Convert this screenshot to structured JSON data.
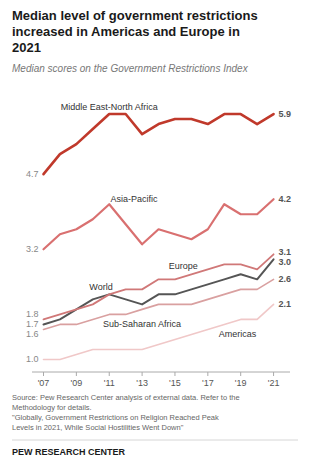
{
  "chart_data": {
    "type": "line",
    "title": "Median level of government restrictions\nincreased in Americas and Europe in\n2021",
    "subtitle": "Median scores on the Government Restrictions Index",
    "source": "Source: Pew Research Center analysis of external data. Refer to the\nMethodology for details.\n\"Globally, Government Restrictions on Religion Reached Peak\nLevels in 2021, While Social Hostilities Went Down\"",
    "footer": "PEW RESEARCH CENTER",
    "x": [
      2007,
      2008,
      2009,
      2010,
      2011,
      2012,
      2013,
      2014,
      2015,
      2016,
      2017,
      2018,
      2019,
      2020,
      2021
    ],
    "series": [
      {
        "name": "Middle East-North Africa",
        "color": "#c0392b",
        "values": [
          4.7,
          5.1,
          5.3,
          5.6,
          5.9,
          5.9,
          5.5,
          5.7,
          5.8,
          5.8,
          5.7,
          5.9,
          5.9,
          5.7,
          5.9
        ],
        "value_labels": [
          "4.7",
          null,
          null,
          null,
          null,
          null,
          null,
          null,
          null,
          null,
          null,
          null,
          null,
          null,
          "5.9"
        ]
      },
      {
        "name": "Asia-Pacific",
        "color": "#d97070",
        "values": [
          3.2,
          3.5,
          3.6,
          3.8,
          4.1,
          3.7,
          3.3,
          3.6,
          3.5,
          3.4,
          3.6,
          4.1,
          3.9,
          3.9,
          4.2
        ],
        "value_labels": [
          "3.2",
          null,
          null,
          null,
          null,
          null,
          null,
          null,
          null,
          null,
          null,
          null,
          null,
          null,
          "4.2"
        ]
      },
      {
        "name": "Europe",
        "color": "#d07878",
        "values": [
          1.8,
          1.9,
          2.0,
          2.1,
          2.3,
          2.4,
          2.4,
          2.6,
          2.6,
          2.7,
          2.8,
          2.9,
          2.9,
          2.8,
          3.1
        ],
        "value_labels": [
          "1.8",
          null,
          null,
          null,
          null,
          null,
          null,
          null,
          null,
          null,
          null,
          null,
          null,
          null,
          "3.1"
        ]
      },
      {
        "name": "World",
        "color": "#555555",
        "values": [
          1.7,
          1.8,
          2.0,
          2.2,
          2.3,
          2.2,
          2.1,
          2.3,
          2.3,
          2.4,
          2.5,
          2.6,
          2.7,
          2.6,
          3.0
        ],
        "value_labels": [
          "1.7",
          null,
          null,
          null,
          null,
          null,
          null,
          null,
          null,
          null,
          null,
          null,
          null,
          null,
          "3.0"
        ]
      },
      {
        "name": "Sub-Saharan Africa",
        "color": "#d9a0a0",
        "values": [
          1.6,
          1.7,
          1.7,
          1.8,
          1.9,
          1.9,
          2.0,
          2.1,
          2.1,
          2.1,
          2.2,
          2.3,
          2.4,
          2.4,
          2.6
        ],
        "value_labels": [
          "1.6",
          null,
          null,
          null,
          null,
          null,
          null,
          null,
          null,
          null,
          null,
          null,
          null,
          null,
          "2.6"
        ]
      },
      {
        "name": "Americas",
        "color": "#f0c8c8",
        "values": [
          1.0,
          1.0,
          1.1,
          1.2,
          1.2,
          1.2,
          1.2,
          1.3,
          1.4,
          1.5,
          1.6,
          1.7,
          1.8,
          1.8,
          2.1
        ],
        "value_labels": [
          "1.0",
          null,
          null,
          null,
          null,
          null,
          null,
          null,
          null,
          null,
          null,
          null,
          null,
          null,
          "2.1"
        ]
      }
    ],
    "xlim": [
      2006.3,
      2022.0
    ],
    "ylim": [
      0.75,
      6.5
    ],
    "xticks": [
      {
        "value": 2007,
        "label": "'07"
      },
      {
        "value": 2009,
        "label": "'09"
      },
      {
        "value": 2011,
        "label": "'11"
      },
      {
        "value": 2013,
        "label": "'13"
      },
      {
        "value": 2015,
        "label": "'15"
      },
      {
        "value": 2017,
        "label": "'17"
      },
      {
        "value": 2019,
        "label": "'19"
      },
      {
        "value": 2021,
        "label": "'21"
      }
    ],
    "yticks": [],
    "tick_labels": "x",
    "grid": false,
    "data_labels": true
  }
}
